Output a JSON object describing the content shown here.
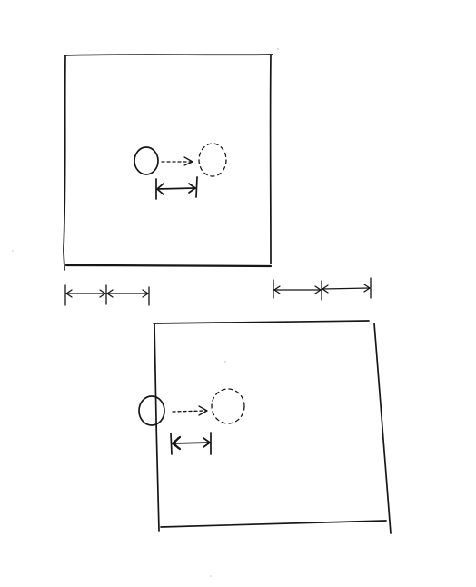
{
  "sketch": {
    "ink_color": "#161616",
    "background": "#ffffff",
    "panels": [
      {
        "id": "top",
        "elements": [
          "square-frame",
          "solid-circle",
          "dashed-arrow",
          "dashed-circle",
          "double-arrow"
        ]
      },
      {
        "id": "bottom",
        "elements": [
          "square-frame",
          "solid-circle",
          "dashed-arrow",
          "dashed-circle",
          "double-arrow"
        ]
      }
    ],
    "offset_arrows": {
      "left_pair_count": 2,
      "right_pair_count": 2
    }
  }
}
